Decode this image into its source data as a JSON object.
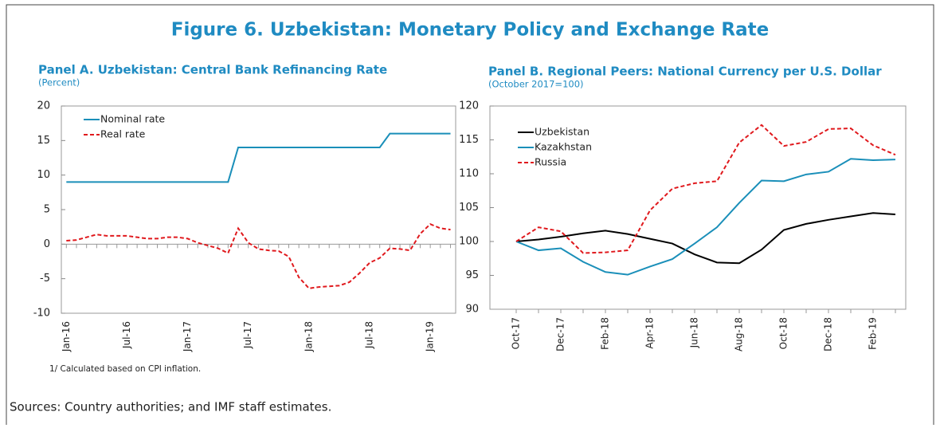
{
  "figure_title": "Figure 6. Uzbekistan: Monetary Policy and Exchange Rate",
  "sources": "Sources: Country authorities; and IMF staff estimates.",
  "chart_data": [
    {
      "type": "line",
      "title": "Panel A. Uzbekistan: Central Bank Refinancing Rate",
      "subtitle": "(Percent)",
      "note": "1/ Calculated based on CPI inflation.",
      "categories": [
        "Jan-16",
        null,
        null,
        null,
        null,
        null,
        "Jul-16",
        null,
        null,
        null,
        null,
        null,
        "Jan-17",
        null,
        null,
        null,
        null,
        null,
        "Jul-17",
        null,
        null,
        null,
        null,
        null,
        "Jan-18",
        null,
        null,
        null,
        null,
        null,
        "Jul-18",
        null,
        null,
        null,
        null,
        null,
        "Jan-19",
        null,
        null
      ],
      "series": [
        {
          "name": "Nominal rate",
          "color": "#1a8fb9",
          "style": "solid",
          "values": [
            9,
            9,
            9,
            9,
            9,
            9,
            9,
            9,
            9,
            9,
            9,
            9,
            9,
            9,
            9,
            9,
            9,
            14,
            14,
            14,
            14,
            14,
            14,
            14,
            14,
            14,
            14,
            14,
            14,
            14,
            14,
            14,
            16,
            16,
            16,
            16,
            16,
            16,
            16
          ]
        },
        {
          "name": "Real rate",
          "color": "#e0191d",
          "style": "dashed",
          "values": [
            0.5,
            0.6,
            1.0,
            1.4,
            1.2,
            1.2,
            1.2,
            1.0,
            0.8,
            0.8,
            1.0,
            1.0,
            0.8,
            0.2,
            -0.2,
            -0.6,
            -1.3,
            2.3,
            0.2,
            -0.7,
            -0.9,
            -1.0,
            -1.8,
            -4.8,
            -6.4,
            -6.2,
            -6.1,
            -6.0,
            -5.5,
            -4.2,
            -2.7,
            -2.0,
            -0.6,
            -0.7,
            -0.9,
            1.5,
            2.9,
            2.3,
            2.1
          ]
        }
      ],
      "ylim": [
        -10,
        20
      ],
      "yticks": [
        -10,
        -5,
        0,
        5,
        10,
        15,
        20
      ],
      "legend": "upper left"
    },
    {
      "type": "line",
      "title": "Panel B. Regional Peers: National Currency per U.S. Dollar",
      "subtitle": "(October 2017=100)",
      "categories": [
        "Oct-17",
        null,
        "Dec-17",
        null,
        "Feb-18",
        null,
        "Apr-18",
        null,
        "Jun-18",
        null,
        "Aug-18",
        null,
        "Oct-18",
        null,
        "Dec-18",
        null,
        "Feb-19",
        null
      ],
      "series": [
        {
          "name": "Uzbekistan",
          "color": "#000000",
          "style": "solid",
          "values": [
            100,
            100.3,
            100.7,
            101.2,
            101.6,
            101.1,
            100.4,
            99.7,
            98.1,
            96.9,
            96.8,
            98.8,
            101.7,
            102.6,
            103.2,
            103.7,
            104.2,
            104.0
          ]
        },
        {
          "name": "Kazakhstan",
          "color": "#1a8fb9",
          "style": "solid",
          "values": [
            100,
            98.7,
            99.0,
            97.0,
            95.5,
            95.1,
            96.3,
            97.4,
            99.7,
            102.1,
            105.7,
            109.0,
            108.9,
            109.9,
            110.3,
            112.2,
            112.0,
            112.1
          ]
        },
        {
          "name": "Russia",
          "color": "#e0191d",
          "style": "dashed",
          "values": [
            100,
            102.1,
            101.5,
            98.3,
            98.4,
            98.7,
            104.6,
            107.8,
            108.6,
            108.9,
            114.6,
            117.2,
            114.1,
            114.7,
            116.6,
            116.7,
            114.2,
            112.8
          ]
        }
      ],
      "ylim": [
        90,
        120
      ],
      "yticks": [
        90,
        95,
        100,
        105,
        110,
        115,
        120
      ],
      "legend": "upper left"
    }
  ]
}
